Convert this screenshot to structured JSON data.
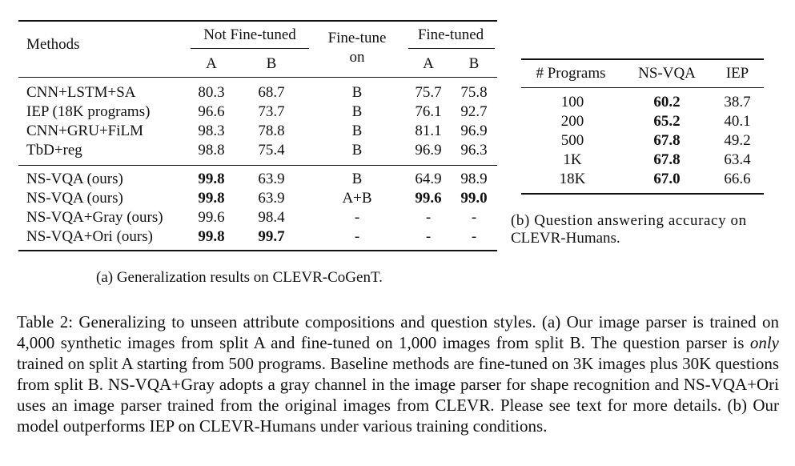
{
  "table_a": {
    "headers": {
      "methods": "Methods",
      "not_finetuned": "Not Fine-tuned",
      "finetune_on_line1": "Fine-tune",
      "finetune_on_line2": "on",
      "finetuned": "Fine-tuned",
      "a": "A",
      "b": "B"
    },
    "rows": [
      {
        "method": "CNN+LSTM+SA",
        "nf_a": "80.3",
        "nf_b": "68.7",
        "on": "B",
        "ft_a": "75.7",
        "ft_b": "75.8"
      },
      {
        "method": "IEP (18K programs)",
        "nf_a": "96.6",
        "nf_b": "73.7",
        "on": "B",
        "ft_a": "76.1",
        "ft_b": "92.7"
      },
      {
        "method": "CNN+GRU+FiLM",
        "nf_a": "98.3",
        "nf_b": "78.8",
        "on": "B",
        "ft_a": "81.1",
        "ft_b": "96.9"
      },
      {
        "method": "TbD+reg",
        "nf_a": "98.8",
        "nf_b": "75.4",
        "on": "B",
        "ft_a": "96.9",
        "ft_b": "96.3"
      },
      {
        "method": "NS-VQA (ours)",
        "nf_a": "99.8",
        "nf_b": "63.9",
        "on": "B",
        "ft_a": "64.9",
        "ft_b": "98.9"
      },
      {
        "method": "NS-VQA (ours)",
        "nf_a": "99.8",
        "nf_b": "63.9",
        "on": "A+B",
        "ft_a": "99.6",
        "ft_b": "99.0"
      },
      {
        "method": "NS-VQA+Gray (ours)",
        "nf_a": "99.6",
        "nf_b": "98.4",
        "on": "-",
        "ft_a": "-",
        "ft_b": "-"
      },
      {
        "method": "NS-VQA+Ori (ours)",
        "nf_a": "99.8",
        "nf_b": "99.7",
        "on": "-",
        "ft_a": "-",
        "ft_b": "-"
      }
    ],
    "caption": "(a) Generalization results on CLEVR-CoGenT."
  },
  "table_b": {
    "headers": {
      "programs": "# Programs",
      "nsvqa": "NS-VQA",
      "iep": "IEP"
    },
    "rows": [
      {
        "programs": "100",
        "nsvqa": "60.2",
        "iep": "38.7"
      },
      {
        "programs": "200",
        "nsvqa": "65.2",
        "iep": "40.1"
      },
      {
        "programs": "500",
        "nsvqa": "67.8",
        "iep": "49.2"
      },
      {
        "programs": "1K",
        "nsvqa": "67.8",
        "iep": "63.4"
      },
      {
        "programs": "18K",
        "nsvqa": "67.0",
        "iep": "66.6"
      }
    ],
    "caption_line1": "(b) Question answering accuracy on",
    "caption_line2": "CLEVR-Humans."
  },
  "main_caption": {
    "part1": "Table 2: Generalizing to unseen attribute compositions and question styles. (a) Our image parser is trained on 4,000 synthetic images from split A and fine-tuned on 1,000 images from split B. The question parser is ",
    "emph": "only",
    "part2": " trained on split A starting from 500 programs. Baseline methods are fine-tuned on 3K images plus 30K questions from split B. NS-VQA+Gray adopts a gray channel in the image parser for shape recognition and NS-VQA+Ori uses an image parser trained from the original images from CLEVR. Please see text for more details. (b) Our model outperforms IEP on CLEVR-Humans under various training conditions."
  }
}
